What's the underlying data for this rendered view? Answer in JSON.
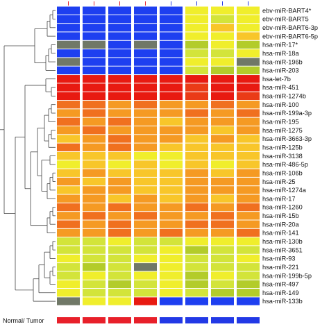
{
  "chart_data": {
    "type": "heatmap",
    "title": "",
    "xlabel": "",
    "ylabel": "",
    "column_count": 8,
    "colors": {
      "blue": "#1e3ff0",
      "gray": "#707867",
      "lime": "#b3cc2a",
      "yellow_green": "#d3e43a",
      "yellow": "#f0ee2c",
      "amber": "#f8c62a",
      "orange": "#f59a23",
      "dark_orange": "#f0701f",
      "red_orange": "#ea3b17",
      "red": "#e81a11",
      "annotation_normal": "#e8202a",
      "annotation_tumor": "#2239e6",
      "dendrogram": "#444444"
    },
    "rows": [
      {
        "label": "ebv-miR-BART4*",
        "cells": [
          "B",
          "B",
          "B",
          "B",
          "B",
          "Y",
          "Y",
          "Y"
        ]
      },
      {
        "label": "ebv-miR-BART5",
        "cells": [
          "B",
          "B",
          "B",
          "B",
          "B",
          "Y",
          "YG",
          "Y"
        ]
      },
      {
        "label": "ebv-miR-BART6-3p",
        "cells": [
          "B",
          "B",
          "B",
          "B",
          "B",
          "Y",
          "A",
          "Y"
        ]
      },
      {
        "label": "ebv-miR-BART6-5p",
        "cells": [
          "B",
          "B",
          "B",
          "B",
          "B",
          "Y",
          "Y",
          "A"
        ]
      },
      {
        "label": "hsa-miR-17*",
        "cells": [
          "G",
          "G",
          "B",
          "G",
          "B",
          "L",
          "Y",
          "L"
        ]
      },
      {
        "label": "hsa-miR-18a",
        "cells": [
          "B",
          "B",
          "B",
          "B",
          "B",
          "YG",
          "YG",
          "Y"
        ]
      },
      {
        "label": "hsa-miR-196b",
        "cells": [
          "G",
          "B",
          "B",
          "B",
          "B",
          "Y",
          "Y",
          "G"
        ]
      },
      {
        "label": "hsa-miR-203",
        "cells": [
          "B",
          "B",
          "B",
          "B",
          "B",
          "YG",
          "L",
          "L"
        ]
      },
      {
        "label": "hsa-let-7b",
        "cells": [
          "R",
          "R",
          "R",
          "R",
          "R",
          "R",
          "R",
          "R"
        ]
      },
      {
        "label": "hsa-miR-451",
        "cells": [
          "R",
          "R",
          "R",
          "R",
          "R",
          "RO",
          "R",
          "R"
        ]
      },
      {
        "label": "hsa-miR-1274b",
        "cells": [
          "R",
          "R",
          "R",
          "R",
          "R",
          "RO",
          "R",
          "RO"
        ]
      },
      {
        "label": "hsa-miR-100",
        "cells": [
          "DO",
          "DO",
          "O",
          "DO",
          "O",
          "O",
          "DO",
          "O"
        ]
      },
      {
        "label": "hsa-miR-199a-3p",
        "cells": [
          "O",
          "DO",
          "O",
          "O",
          "O",
          "DO",
          "O",
          "DO"
        ]
      },
      {
        "label": "hsa-miR-195",
        "cells": [
          "DO",
          "O",
          "DO",
          "O",
          "A",
          "O",
          "O",
          "O"
        ]
      },
      {
        "label": "hsa-miR-1275",
        "cells": [
          "O",
          "DO",
          "O",
          "O",
          "O",
          "O",
          "A",
          "O"
        ]
      },
      {
        "label": "hsa-miR-3663-3p",
        "cells": [
          "A",
          "O",
          "DO",
          "O",
          "O",
          "A",
          "O",
          "A"
        ]
      },
      {
        "label": "hsa-miR-125b",
        "cells": [
          "DO",
          "O",
          "DO",
          "O",
          "A",
          "A",
          "A",
          "A"
        ]
      },
      {
        "label": "hsa-miR-3138",
        "cells": [
          "A",
          "A",
          "A",
          "Y",
          "Y",
          "A",
          "A",
          "A"
        ]
      },
      {
        "label": "hsa-miR-486-5p",
        "cells": [
          "Y",
          "A",
          "Y",
          "A",
          "Y",
          "A",
          "Y",
          "A"
        ]
      },
      {
        "label": "hsa-miR-106b",
        "cells": [
          "A",
          "O",
          "A",
          "A",
          "A",
          "O",
          "A",
          "O"
        ]
      },
      {
        "label": "hsa-miR-25",
        "cells": [
          "O",
          "A",
          "O",
          "A",
          "A",
          "O",
          "O",
          "O"
        ]
      },
      {
        "label": "hsa-miR-1274a",
        "cells": [
          "A",
          "O",
          "O",
          "A",
          "A",
          "O",
          "O",
          "O"
        ]
      },
      {
        "label": "hsa-miR-17",
        "cells": [
          "O",
          "O",
          "A",
          "O",
          "A",
          "O",
          "A",
          "O"
        ]
      },
      {
        "label": "hsa-miR-1260",
        "cells": [
          "DO",
          "O",
          "DO",
          "O",
          "O",
          "DO",
          "O",
          "DO"
        ]
      },
      {
        "label": "hsa-miR-15b",
        "cells": [
          "O",
          "DO",
          "O",
          "DO",
          "O",
          "O",
          "DO",
          "O"
        ]
      },
      {
        "label": "hsa-miR-20a",
        "cells": [
          "DO",
          "O",
          "DO",
          "O",
          "O",
          "DO",
          "DO",
          "O"
        ]
      },
      {
        "label": "hsa-miR-141",
        "cells": [
          "O",
          "O",
          "DO",
          "O",
          "DO",
          "O",
          "O",
          "DO"
        ]
      },
      {
        "label": "hsa-miR-130b",
        "cells": [
          "YG",
          "YG",
          "Y",
          "YG",
          "YG",
          "Y",
          "Y",
          "Y"
        ]
      },
      {
        "label": "hsa-miR-3651",
        "cells": [
          "YG",
          "YG",
          "YG",
          "YG",
          "Y",
          "L",
          "YG",
          "YG"
        ]
      },
      {
        "label": "hsa-miR-93",
        "cells": [
          "Y",
          "YG",
          "YG",
          "Y",
          "Y",
          "YG",
          "YG",
          "Y"
        ]
      },
      {
        "label": "hsa-miR-221",
        "cells": [
          "YG",
          "L",
          "YG",
          "G",
          "Y",
          "YG",
          "YG",
          "YG"
        ]
      },
      {
        "label": "hsa-miR-199b-5p",
        "cells": [
          "YG",
          "Y",
          "YG",
          "Y",
          "Y",
          "L",
          "Y",
          "YG"
        ]
      },
      {
        "label": "hsa-miR-497",
        "cells": [
          "Y",
          "YG",
          "L",
          "YG",
          "Y",
          "L",
          "YG",
          "L"
        ]
      },
      {
        "label": "hsa-miR-149",
        "cells": [
          "Y",
          "YG",
          "YG",
          "YG",
          "Y",
          "YG",
          "L",
          "L"
        ]
      },
      {
        "label": "hsa-miR-133b",
        "cells": [
          "G",
          "Y",
          "Y",
          "R",
          "B",
          "B",
          "B",
          "B"
        ]
      }
    ],
    "annotation_label": "Normal/ Tumor",
    "annotation": [
      "normal",
      "normal",
      "normal",
      "normal",
      "tumor",
      "tumor",
      "tumor",
      "tumor"
    ]
  }
}
